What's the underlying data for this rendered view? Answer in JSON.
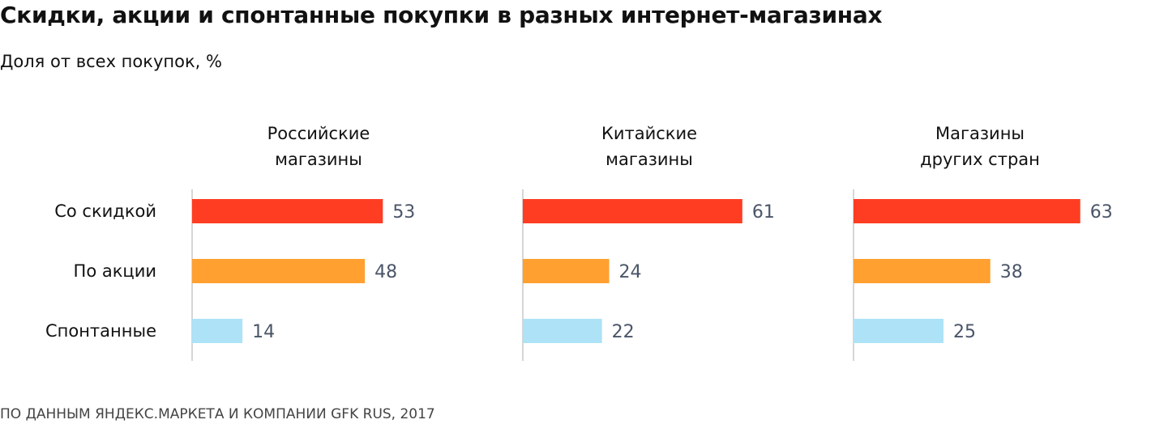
{
  "title": "Скидки, акции и спонтанные покупки в разных интернет-магазинах",
  "subtitle": "Доля от всех покупок, %",
  "source": "ПО ДАННЫМ ЯНДЕКС.МАРКЕТА И КОМПАНИИ GFK RUS, 2017",
  "colors": {
    "discount": "#ff3d22",
    "promo": "#ffa030",
    "impulse": "#ade2f7",
    "axis": "#c8c8c8",
    "value_text": "#4a5568"
  },
  "chart_data": {
    "type": "bar",
    "orientation": "horizontal",
    "categories": [
      "Со скидкой",
      "По акции",
      "Спонтанные"
    ],
    "panels": [
      {
        "title_lines": [
          "Российские",
          "магазины"
        ],
        "values": [
          53,
          48,
          14
        ]
      },
      {
        "title_lines": [
          "Китайские",
          "магазины"
        ],
        "values": [
          61,
          24,
          22
        ]
      },
      {
        "title_lines": [
          "Магазины",
          "других стран"
        ],
        "values": [
          63,
          38,
          25
        ]
      }
    ],
    "xlim": [
      0,
      70
    ],
    "grid": false
  }
}
